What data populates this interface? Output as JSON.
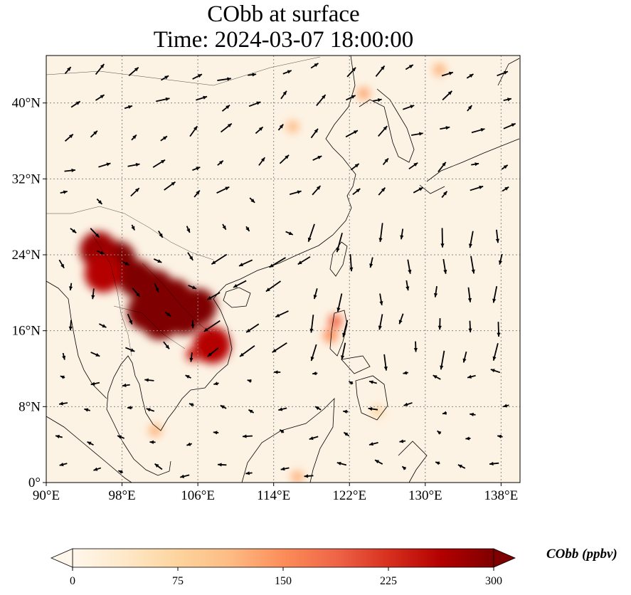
{
  "title": {
    "line1": "CObb at surface",
    "line2": "Time: 2024-03-07 18:00:00"
  },
  "map": {
    "lon_range": [
      90,
      140
    ],
    "lat_range": [
      0,
      45
    ],
    "x_ticks": [
      {
        "lon": 90,
        "label": "90°E"
      },
      {
        "lon": 98,
        "label": "98°E"
      },
      {
        "lon": 106,
        "label": "106°E"
      },
      {
        "lon": 114,
        "label": "114°E"
      },
      {
        "lon": 122,
        "label": "122°E"
      },
      {
        "lon": 130,
        "label": "130°E"
      },
      {
        "lon": 138,
        "label": "138°E"
      }
    ],
    "y_ticks": [
      {
        "lat": 0,
        "label": "0°"
      },
      {
        "lat": 8,
        "label": "8°N"
      },
      {
        "lat": 16,
        "label": "16°N"
      },
      {
        "lat": 24,
        "label": "24°N"
      },
      {
        "lat": 32,
        "label": "32°N"
      },
      {
        "lat": 40,
        "label": "40°N"
      }
    ],
    "gridlines": true,
    "wind_vectors": true,
    "colormap": "OrRd",
    "background_color": "#fdf3e4",
    "hotspots": [
      {
        "lon": 97.5,
        "lat": 23.5,
        "value": 300
      },
      {
        "lon": 99.5,
        "lat": 21.5,
        "value": 300
      },
      {
        "lon": 101.5,
        "lat": 20.5,
        "value": 300
      },
      {
        "lon": 103.5,
        "lat": 19.5,
        "value": 300
      },
      {
        "lon": 100.5,
        "lat": 18.0,
        "value": 300
      },
      {
        "lon": 102.0,
        "lat": 17.0,
        "value": 300
      },
      {
        "lon": 104.5,
        "lat": 17.5,
        "value": 300
      },
      {
        "lon": 106.0,
        "lat": 18.5,
        "value": 300
      },
      {
        "lon": 107.5,
        "lat": 14.5,
        "value": 260
      },
      {
        "lon": 105.5,
        "lat": 13.5,
        "value": 240
      },
      {
        "lon": 95.5,
        "lat": 24.5,
        "value": 280
      },
      {
        "lon": 96.0,
        "lat": 22.0,
        "value": 260
      },
      {
        "lon": 120.5,
        "lat": 17.0,
        "value": 180
      },
      {
        "lon": 120.0,
        "lat": 15.5,
        "value": 150
      },
      {
        "lon": 116.0,
        "lat": 37.5,
        "value": 110
      },
      {
        "lon": 123.5,
        "lat": 41.0,
        "value": 130
      },
      {
        "lon": 131.5,
        "lat": 43.5,
        "value": 120
      },
      {
        "lon": 125.0,
        "lat": 7.5,
        "value": 70
      },
      {
        "lon": 101.5,
        "lat": 5.5,
        "value": 120
      },
      {
        "lon": 116.5,
        "lat": 0.6,
        "value": 120
      }
    ]
  },
  "colorbar": {
    "label": "CObb (ppbv)",
    "min": 0,
    "max": 300,
    "ticks": [
      {
        "value": 0,
        "label": "0"
      },
      {
        "value": 75,
        "label": "75"
      },
      {
        "value": 150,
        "label": "150"
      },
      {
        "value": 225,
        "label": "225"
      },
      {
        "value": 300,
        "label": "300"
      }
    ],
    "extend": "both",
    "stops": [
      "#fff7ec",
      "#fee8c8",
      "#fdd49e",
      "#fdbb84",
      "#fc8d59",
      "#ef6548",
      "#d7301f",
      "#b30000",
      "#7f0000"
    ]
  }
}
